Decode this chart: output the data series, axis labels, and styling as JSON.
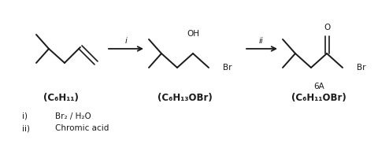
{
  "background_color": "#ffffff",
  "arrow1_label": "i",
  "arrow2_label": "ii",
  "label1": "(C₆H₁₁)",
  "label2": "(C₆H₁₃OBr)",
  "label3": "(C₆H₁₁OBr)",
  "label3a": "6A",
  "reagent1_left": "i)",
  "reagent1_right": "Br₂ / H₂O",
  "reagent2_left": "ii)",
  "reagent2_right": "Chromic acid",
  "line_color": "#1a1a1a",
  "text_color": "#1a1a1a",
  "fontsize": 8.5,
  "small_fontsize": 7.5,
  "lw": 1.4
}
